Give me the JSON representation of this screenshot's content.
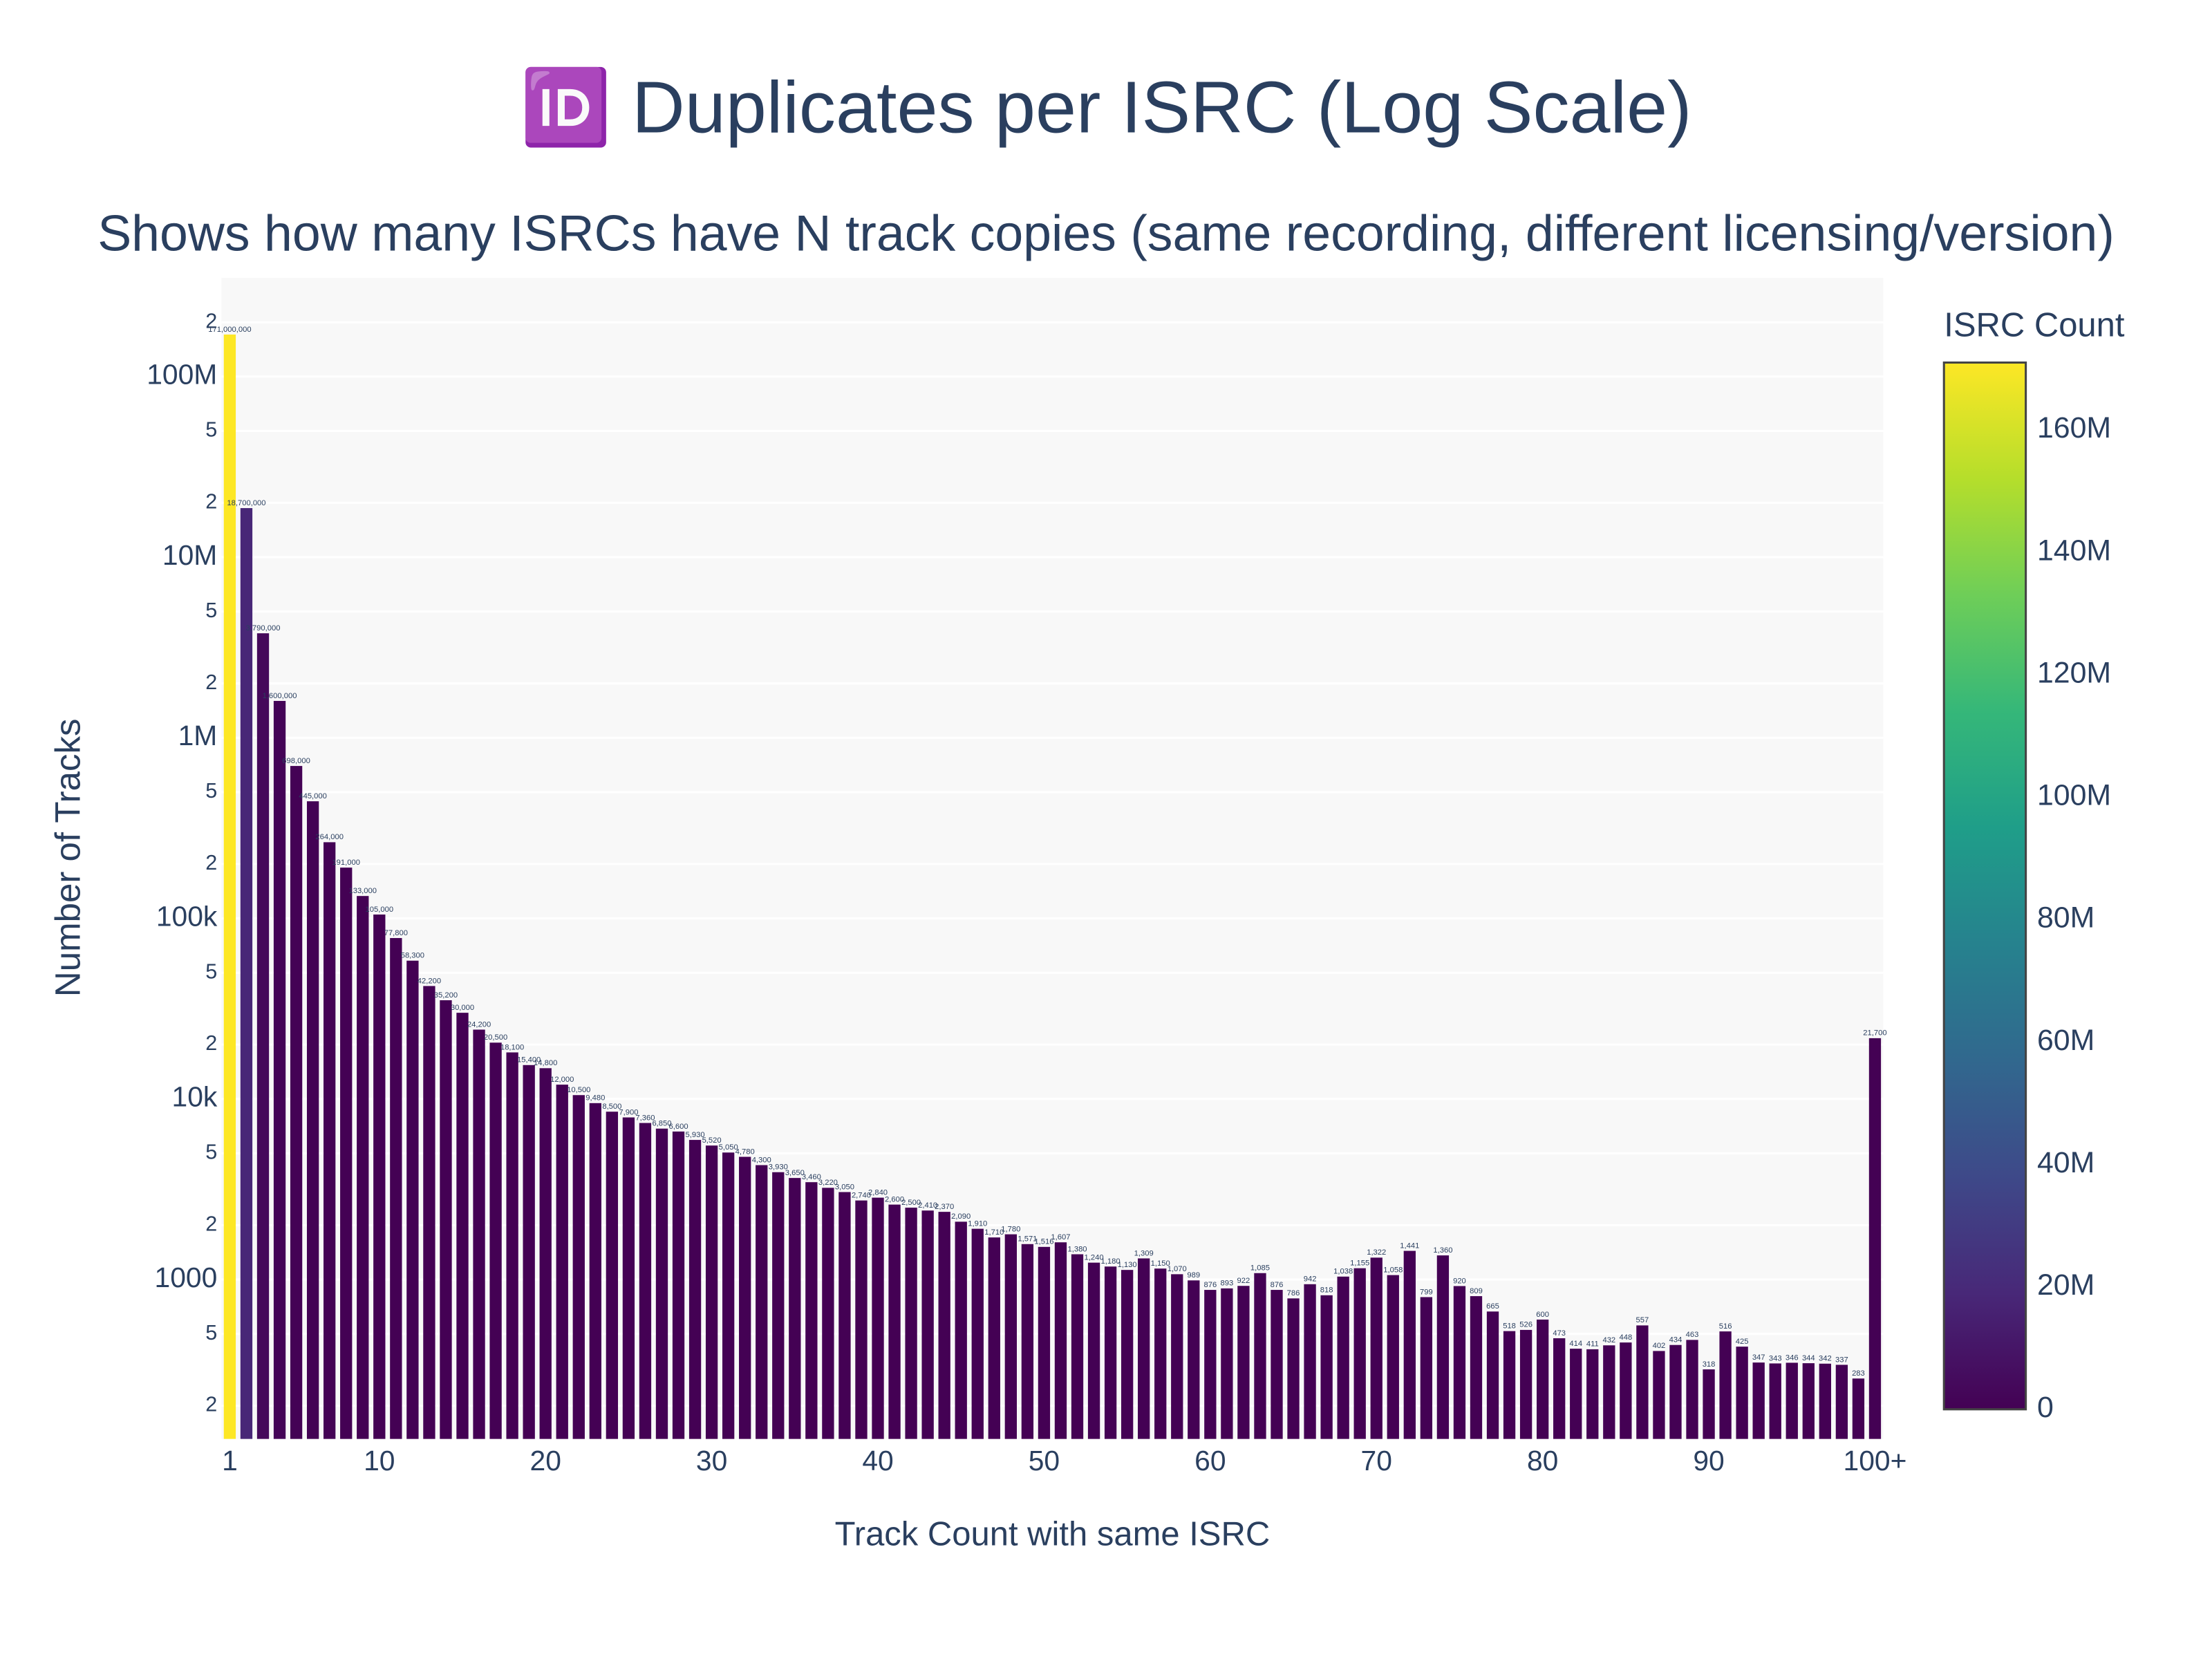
{
  "chart_data": {
    "type": "bar",
    "title": "🆔 Duplicates per ISRC (Log Scale)",
    "subtitle": "Shows how many ISRCs have N track copies (same recording, different licensing/version)",
    "x_label": "Track Count with same ISRC",
    "y_label": "Number of Tracks",
    "log_y": true,
    "grid": true,
    "x": [
      1,
      2,
      3,
      4,
      5,
      6,
      7,
      8,
      9,
      10,
      11,
      12,
      13,
      14,
      15,
      16,
      17,
      18,
      19,
      20,
      21,
      22,
      23,
      24,
      25,
      26,
      27,
      28,
      29,
      30,
      31,
      32,
      33,
      34,
      35,
      36,
      37,
      38,
      39,
      40,
      41,
      42,
      43,
      44,
      45,
      46,
      47,
      48,
      49,
      50,
      51,
      52,
      53,
      54,
      55,
      56,
      57,
      58,
      59,
      60,
      61,
      62,
      63,
      64,
      65,
      66,
      67,
      68,
      69,
      70,
      71,
      72,
      73,
      74,
      75,
      76,
      77,
      78,
      79,
      80,
      81,
      82,
      83,
      84,
      85,
      86,
      87,
      88,
      89,
      90,
      91,
      92,
      93,
      94,
      95,
      96,
      97,
      98,
      99,
      100
    ],
    "values": [
      171000000,
      18700000,
      3790000,
      1600000,
      698000,
      445000,
      264000,
      191000,
      133000,
      105000,
      77800,
      58300,
      42200,
      35200,
      30000,
      24200,
      20500,
      18100,
      15400,
      14800,
      12000,
      10500,
      9480,
      8500,
      7900,
      7360,
      6850,
      6600,
      5930,
      5520,
      5050,
      4780,
      4300,
      3930,
      3650,
      3460,
      3220,
      3050,
      2740,
      2840,
      2600,
      2500,
      2410,
      2370,
      2090,
      1910,
      1710,
      1780,
      1571,
      1516,
      1607,
      1380,
      1240,
      1180,
      1130,
      1309,
      1150,
      1070,
      989,
      876,
      893,
      922,
      1085,
      876,
      786,
      942,
      818,
      1038,
      1155,
      1322,
      1058,
      1441,
      799,
      1360,
      920,
      809,
      665,
      518,
      526,
      600,
      473,
      414,
      411,
      432,
      448,
      557,
      402,
      434,
      463,
      318,
      516,
      425,
      347,
      343,
      346,
      344,
      342,
      337,
      283,
      21700
    ],
    "value_labels": [
      "171,000,000",
      "18,700,000",
      "3,790,000",
      "1,600,000",
      "698,000",
      "445,000",
      "264,000",
      "191,000",
      "133,000",
      "105,000",
      "77,800",
      "58,300",
      "42,200",
      "35,200",
      "30,000",
      "24,200",
      "20,500",
      "18,100",
      "15,400",
      "14,800",
      "12,000",
      "10,500",
      "9,480",
      "8,500",
      "7,900",
      "7,360",
      "6,850",
      "6,600",
      "5,930",
      "5,520",
      "5,050",
      "4,780",
      "4,300",
      "3,930",
      "3,650",
      "3,460",
      "3,220",
      "3,050",
      "2,740",
      "2,840",
      "2,600",
      "2,500",
      "2,410",
      "2,370",
      "2,090",
      "1,910",
      "1,710",
      "1,780",
      "1,571",
      "1,516",
      "1,607",
      "1,380",
      "1,240",
      "1,180",
      "1,130",
      "1,309",
      "1,150",
      "1,070",
      "989",
      "876",
      "893",
      "922",
      "1,085",
      "876",
      "786",
      "942",
      "818",
      "1,038",
      "1,155",
      "1,322",
      "1,058",
      "1,441",
      "799",
      "1,360",
      "920",
      "809",
      "665",
      "518",
      "526",
      "600",
      "473",
      "414",
      "411",
      "432",
      "448",
      "557",
      "402",
      "434",
      "463",
      "318",
      "516",
      "425",
      "347",
      "343",
      "346",
      "344",
      "342",
      "337",
      "283",
      "21,700"
    ],
    "xlim": [
      0.5,
      100.5
    ],
    "xticks": [
      1,
      10,
      20,
      30,
      40,
      50,
      60,
      70,
      80,
      90,
      {
        "value": 100,
        "label": "100+"
      }
    ],
    "ylim": [
      131,
      352000000
    ],
    "yticks": [
      {
        "value": 200,
        "label": "2"
      },
      {
        "value": 500,
        "label": "5"
      },
      1000,
      {
        "value": 2000,
        "label": "2"
      },
      {
        "value": 5000,
        "label": "5"
      },
      {
        "value": 10000,
        "label": "10k"
      },
      {
        "value": 20000,
        "label": "2"
      },
      {
        "value": 50000,
        "label": "5"
      },
      {
        "value": 100000,
        "label": "100k"
      },
      {
        "value": 200000,
        "label": "2"
      },
      {
        "value": 500000,
        "label": "5"
      },
      {
        "value": 1000000,
        "label": "1M"
      },
      {
        "value": 2000000,
        "label": "2"
      },
      {
        "value": 5000000,
        "label": "5"
      },
      {
        "value": 10000000,
        "label": "10M"
      },
      {
        "value": 20000000,
        "label": "2"
      },
      {
        "value": 50000000,
        "label": "5"
      },
      {
        "value": 100000000,
        "label": "100M"
      },
      {
        "value": 200000000,
        "label": "2"
      }
    ],
    "colorbar_title": "ISRC Count",
    "colorscale": [
      "#440154",
      "#482878",
      "#3e4989",
      "#31688e",
      "#26828e",
      "#1f9e89",
      "#35b779",
      "#6ece58",
      "#b5de2b",
      "#fde725"
    ],
    "clim": [
      0,
      171000000
    ],
    "cticks": [
      0,
      {
        "value": 20000000,
        "label": "20M"
      },
      {
        "value": 40000000,
        "label": "40M"
      },
      {
        "value": 60000000,
        "label": "60M"
      },
      {
        "value": 80000000,
        "label": "80M"
      },
      {
        "value": 100000000,
        "label": "100M"
      },
      {
        "value": 120000000,
        "label": "120M"
      },
      {
        "value": 140000000,
        "label": "140M"
      },
      {
        "value": 160000000,
        "label": "160M"
      }
    ]
  }
}
